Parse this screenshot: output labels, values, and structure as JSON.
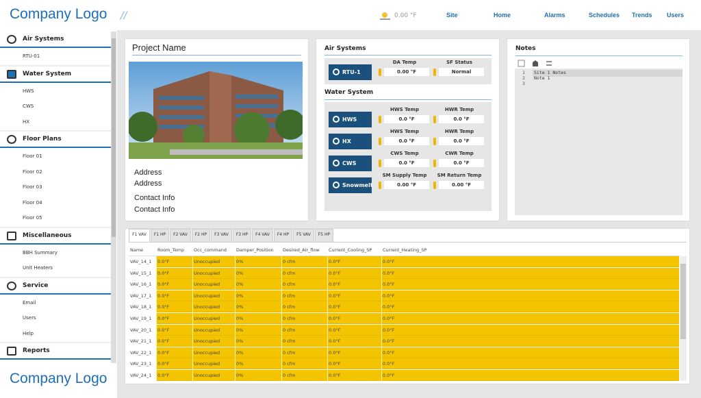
{
  "header": {
    "logo": "Company Logo",
    "weather": "0.00 °F",
    "nav": [
      "Site",
      "Home",
      "Alarms",
      "Schedules",
      "Trends",
      "Users"
    ]
  },
  "sidebar": {
    "sections": [
      {
        "title": "Air Systems",
        "items": [
          "RTU-01"
        ]
      },
      {
        "title": "Water System",
        "items": [
          "HWS",
          "CWS",
          "HX"
        ]
      },
      {
        "title": "Floor Plans",
        "items": [
          "Floor 01",
          "Floor 02",
          "Floor 03",
          "Floor 04",
          "Floor 05"
        ]
      },
      {
        "title": "Miscellaneous",
        "items": [
          "BBH Summary",
          "Unit Heaters"
        ]
      },
      {
        "title": "Service",
        "items": [
          "Email",
          "Users",
          "Help"
        ]
      },
      {
        "title": "Reports",
        "items": []
      }
    ],
    "footer_logo": "Company Logo"
  },
  "project": {
    "title": "Project Name",
    "lines": [
      "Address",
      "Address",
      "Contact Info",
      "Contact Info"
    ]
  },
  "air_systems": {
    "title": "Air Systems",
    "units": [
      {
        "button": "RTU-1",
        "fields": [
          {
            "label": "DA Temp",
            "value": "0.00 °F"
          },
          {
            "label": "SF Status",
            "value": "Normal"
          }
        ]
      }
    ]
  },
  "water_system": {
    "title": "Water System",
    "units": [
      {
        "button": "HWS",
        "fields": [
          {
            "label": "HWS Temp",
            "value": "0.0 °F"
          },
          {
            "label": "HWR Temp",
            "value": "0.0 °F"
          }
        ]
      },
      {
        "button": "HX",
        "fields": [
          {
            "label": "HWS Temp",
            "value": "0.0 °F"
          },
          {
            "label": "HWR Temp",
            "value": "0.0 °F"
          }
        ]
      },
      {
        "button": "CWS",
        "fields": [
          {
            "label": "CWS Temp",
            "value": "0.0 °F"
          },
          {
            "label": "CWR Temp",
            "value": "0.0 °F"
          }
        ]
      },
      {
        "button": "Snowmelt",
        "fields": [
          {
            "label": "SM Supply Temp",
            "value": "0.00 °F"
          },
          {
            "label": "SM Return Temp",
            "value": "0.00 °F"
          }
        ]
      }
    ]
  },
  "notes": {
    "title": "Notes",
    "line_numbers": [
      1,
      2,
      3
    ],
    "lines": [
      "Site 1 Notes",
      "Note 1"
    ]
  },
  "table": {
    "tabs": [
      "F1 VAV",
      "F1 HP",
      "F2 VAV",
      "F2 HP",
      "F3 VAV",
      "F3 HP",
      "F4 VAV",
      "F4 HP",
      "F5 VAV",
      "F5 HP"
    ],
    "columns": [
      "Name",
      "Room_Temp",
      "Occ_command",
      "Damper_Position",
      "Desired_Air_flow",
      "Current_Cooling_SP",
      "Current_Heating_SP"
    ],
    "rows": [
      [
        "VAV_14_1",
        "0.0°F",
        "Unoccupied",
        "0%",
        "0 cfm",
        "0.0°F",
        "0.0°F"
      ],
      [
        "VAV_15_1",
        "0.0°F",
        "Unoccupied",
        "0%",
        "0 cfm",
        "0.0°F",
        "0.0°F"
      ],
      [
        "VAV_16_1",
        "0.0°F",
        "Unoccupied",
        "0%",
        "0 cfm",
        "0.0°F",
        "0.0°F"
      ],
      [
        "VAV_17_1",
        "0.0°F",
        "Unoccupied",
        "0%",
        "0 cfm",
        "0.0°F",
        "0.0°F"
      ],
      [
        "VAV_18_1",
        "0.0°F",
        "Unoccupied",
        "0%",
        "0 cfm",
        "0.0°F",
        "0.0°F"
      ],
      [
        "VAV_19_1",
        "0.0°F",
        "Unoccupied",
        "0%",
        "0 cfm",
        "0.0°F",
        "0.0°F"
      ],
      [
        "VAV_20_1",
        "0.0°F",
        "Unoccupied",
        "0%",
        "0 cfm",
        "0.0°F",
        "0.0°F"
      ],
      [
        "VAV_21_1",
        "0.0°F",
        "Unoccupied",
        "0%",
        "0 cfm",
        "0.0°F",
        "0.0°F"
      ],
      [
        "VAV_22_1",
        "0.0°F",
        "Unoccupied",
        "0%",
        "0 cfm",
        "0.0°F",
        "0.0°F"
      ],
      [
        "VAV_23_1",
        "0.0°F",
        "Unoccupied",
        "0%",
        "0 cfm",
        "0.0°F",
        "0.0°F"
      ],
      [
        "VAV_24_1",
        "0.0°F",
        "Unoccupied",
        "0%",
        "0 cfm",
        "0.0°F",
        "0.0°F"
      ]
    ]
  }
}
